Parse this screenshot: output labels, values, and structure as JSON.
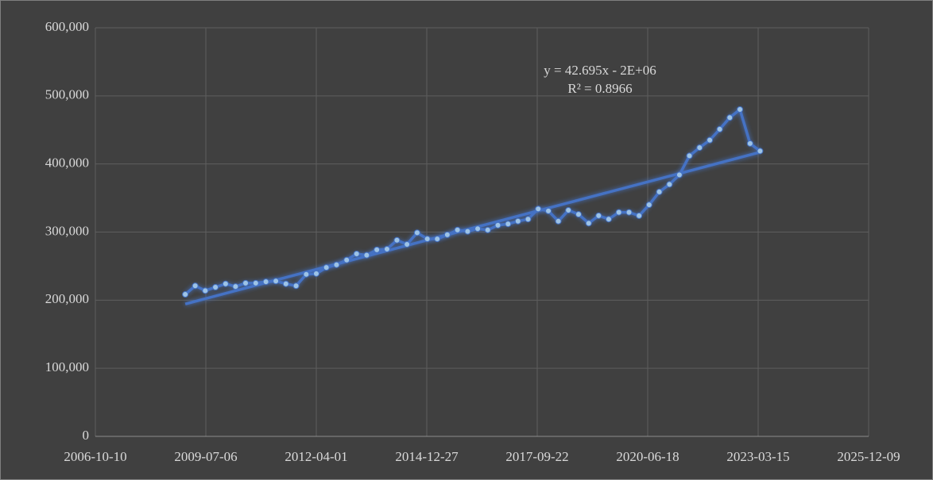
{
  "chart_data": {
    "type": "line",
    "x": [
      "2009-01-01",
      "2009-04-01",
      "2009-07-01",
      "2009-10-01",
      "2010-01-01",
      "2010-04-01",
      "2010-07-01",
      "2010-10-01",
      "2011-01-01",
      "2011-04-01",
      "2011-07-01",
      "2011-10-01",
      "2012-01-01",
      "2012-04-01",
      "2012-07-01",
      "2012-10-01",
      "2013-01-01",
      "2013-04-01",
      "2013-07-01",
      "2013-10-01",
      "2014-01-01",
      "2014-04-01",
      "2014-07-01",
      "2014-10-01",
      "2015-01-01",
      "2015-04-01",
      "2015-07-01",
      "2015-10-01",
      "2016-01-01",
      "2016-04-01",
      "2016-07-01",
      "2016-10-01",
      "2017-01-01",
      "2017-04-01",
      "2017-07-01",
      "2017-10-01",
      "2018-01-01",
      "2018-04-01",
      "2018-07-01",
      "2018-10-01",
      "2019-01-01",
      "2019-04-01",
      "2019-07-01",
      "2019-10-01",
      "2020-01-01",
      "2020-04-01",
      "2020-07-01",
      "2020-10-01",
      "2021-01-01",
      "2021-04-01",
      "2021-07-01",
      "2021-10-01",
      "2022-01-01",
      "2022-04-01",
      "2022-07-01",
      "2022-10-01",
      "2023-01-01",
      "2023-04-01"
    ],
    "series": [
      {
        "color": "#4472c4",
        "marker_color": "#9dc3e6",
        "values": [
          208500,
          221000,
          214000,
          219000,
          224000,
          220000,
          225000,
          225000,
          227000,
          228000,
          224000,
          221000,
          238000,
          239000,
          248000,
          252000,
          259000,
          268000,
          266000,
          274000,
          275000,
          288000,
          282000,
          299000,
          290000,
          290000,
          296000,
          303000,
          301000,
          305000,
          303000,
          310000,
          312000,
          316000,
          319000,
          334000,
          331000,
          316000,
          332000,
          326000,
          313000,
          324000,
          319000,
          329000,
          329000,
          324000,
          340000,
          359000,
          370000,
          384000,
          412000,
          424000,
          435000,
          451000,
          468000,
          480000,
          430000,
          419000
        ]
      }
    ],
    "trendline": {
      "color": "#4472c4",
      "equation": "y = 42.695x - 2E+06",
      "r_squared": "R² = 0.8966"
    },
    "xlim": [
      "2006-10-10",
      "2025-12-09"
    ],
    "xticks": [
      "2006-10-10",
      "2009-07-06",
      "2012-04-01",
      "2014-12-27",
      "2017-09-22",
      "2020-06-18",
      "2023-03-15",
      "2025-12-09"
    ],
    "ylim": [
      0,
      600000
    ],
    "yticks": [
      0,
      {
        "value": 100000,
        "label": "100,000"
      },
      {
        "value": 200000,
        "label": "200,000"
      },
      {
        "value": 300000,
        "label": "300,000"
      },
      {
        "value": 400000,
        "label": "400,000"
      },
      {
        "value": 500000,
        "label": "500,000"
      },
      {
        "value": 600000,
        "label": "600,000"
      }
    ],
    "grid": true
  }
}
